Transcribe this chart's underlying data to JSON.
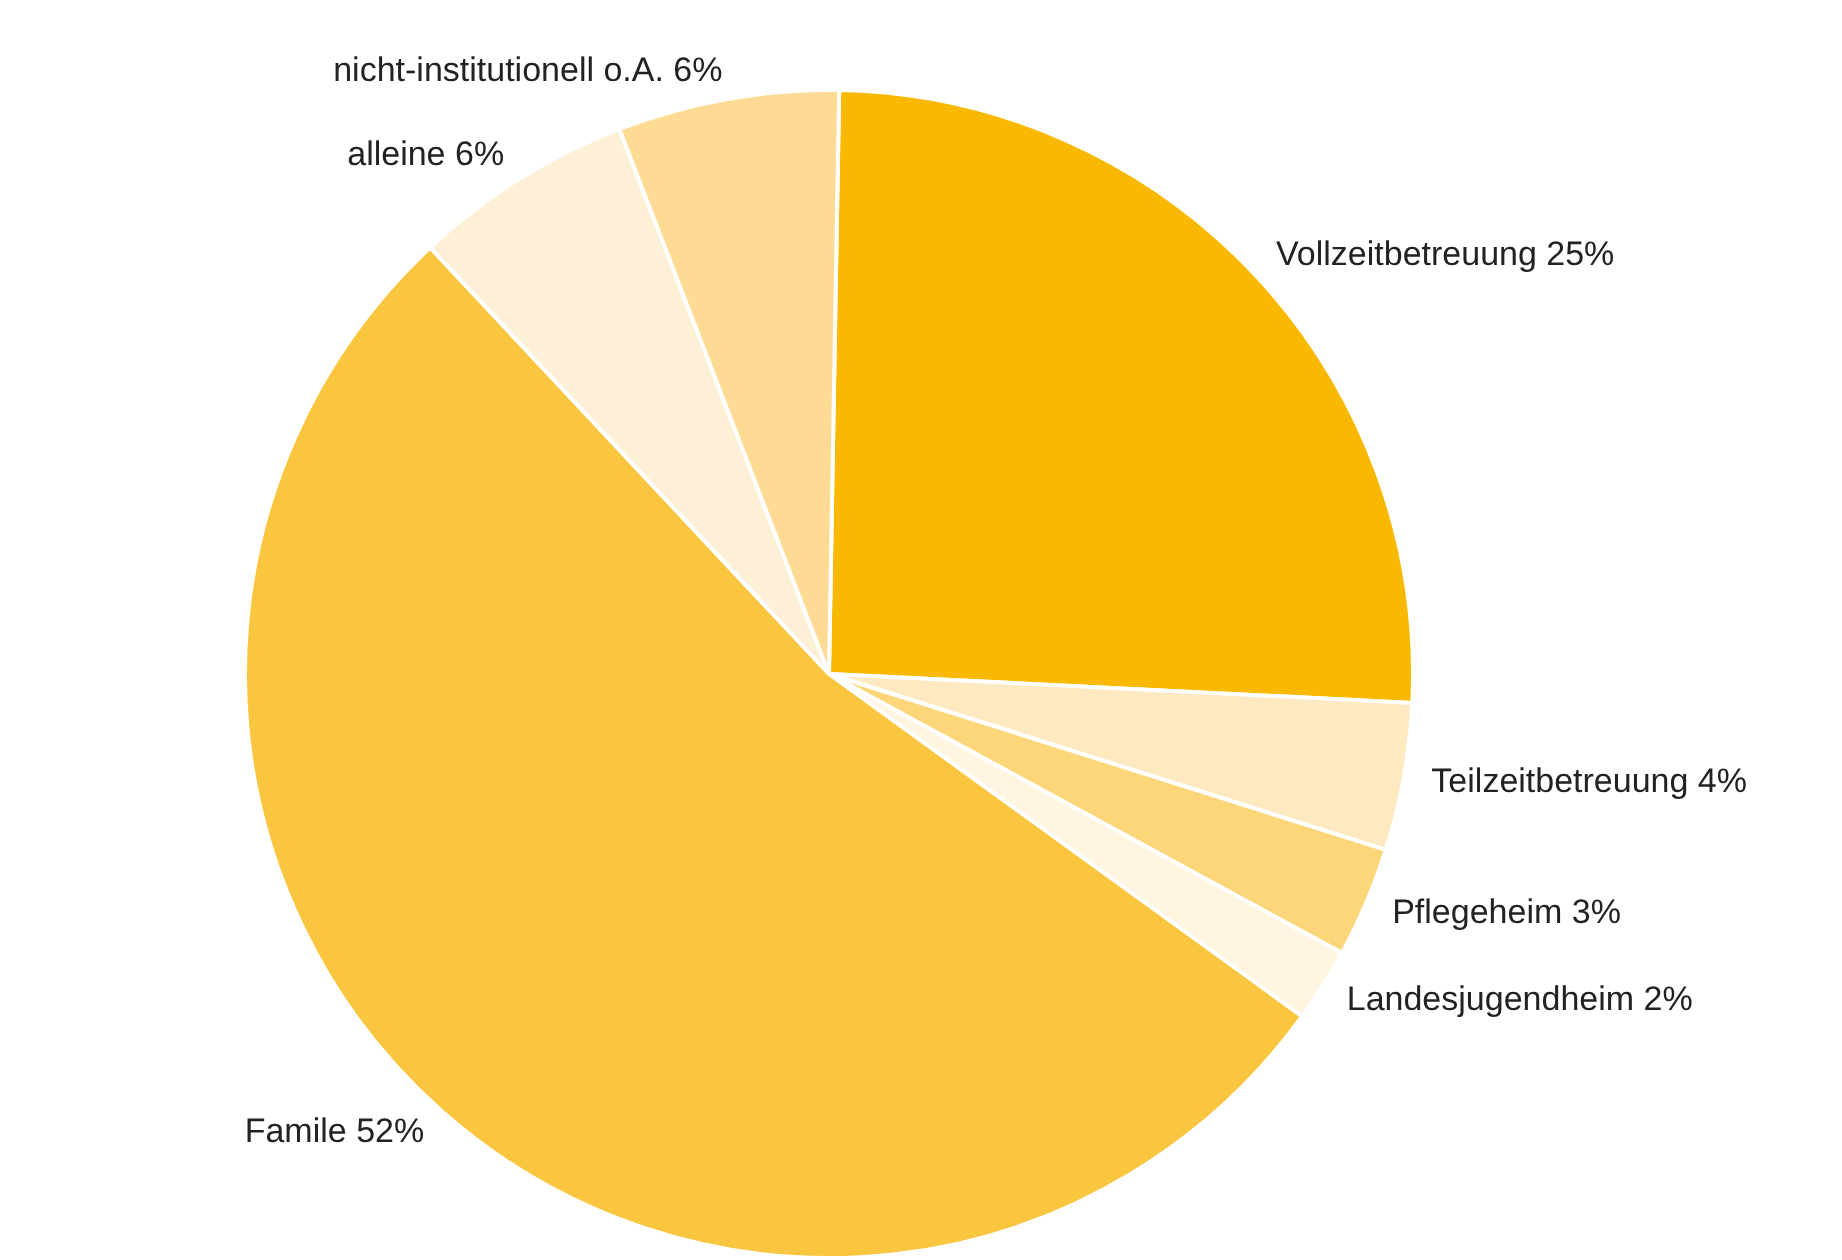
{
  "chart_data": {
    "type": "pie",
    "categories": [
      "Vollzeitbetreuung",
      "Teilzeitbetreuung",
      "Pflegeheim",
      "Landesjugendheim",
      "Famile",
      "alleine",
      "nicht-institutionell o.A."
    ],
    "values": [
      25,
      4,
      3,
      2,
      52,
      6,
      6
    ],
    "value_labels": [
      "25%",
      "4%",
      "3%",
      "2%",
      "52%",
      "6%",
      "6%"
    ],
    "colors": [
      "#f8b900",
      "#fee9c0",
      "#fdd67a",
      "#fff5e0",
      "#fac640",
      "#fef0d6",
      "#fedb94"
    ],
    "legend": false
  }
}
